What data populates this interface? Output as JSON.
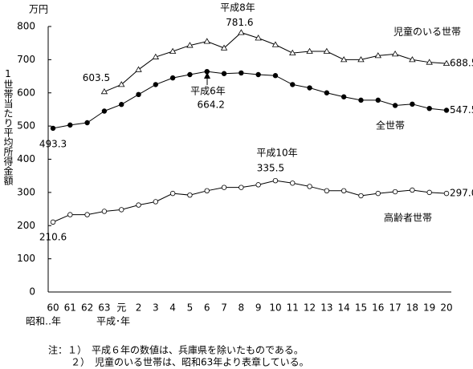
{
  "chart_data": {
    "type": "line",
    "unit_label": "万円",
    "y_label": "1世帯当たり平均所得金額",
    "x_sublabels": [
      "昭和‥年",
      "平成･年"
    ],
    "categories": [
      "60",
      "61",
      "62",
      "63",
      "元",
      "2",
      "3",
      "4",
      "5",
      "6",
      "7",
      "8",
      "9",
      "10",
      "11",
      "12",
      "13",
      "14",
      "15",
      "16",
      "17",
      "18",
      "19",
      "20"
    ],
    "series": [
      {
        "name": "全世帯",
        "color": "#000000",
        "marker": "filled-circle",
        "values": [
          493.3,
          503,
          510,
          545,
          565,
          595,
          625,
          645,
          655,
          664.2,
          658,
          660,
          655,
          652,
          625,
          615,
          600,
          588,
          578,
          578,
          562,
          566,
          553,
          547.5
        ],
        "value_labels": [
          "493.3",
          null,
          null,
          null,
          null,
          null,
          null,
          null,
          null,
          "664.2",
          null,
          null,
          null,
          null,
          null,
          null,
          null,
          null,
          null,
          null,
          null,
          null,
          null,
          "547.5"
        ]
      },
      {
        "name": "児童のいる世帯",
        "color": "#000000",
        "marker": "open-triangle",
        "values": [
          null,
          null,
          null,
          603.5,
          625,
          670,
          708,
          725,
          743,
          755,
          735,
          781.6,
          765,
          745,
          720,
          725,
          725,
          700,
          700,
          712,
          717,
          700,
          692,
          688.5
        ],
        "value_labels": [
          null,
          null,
          null,
          "603.5",
          null,
          null,
          null,
          null,
          null,
          null,
          null,
          "781.6",
          null,
          null,
          null,
          null,
          null,
          null,
          null,
          null,
          null,
          null,
          null,
          "688.5"
        ]
      },
      {
        "name": "高齢者世帯",
        "color": "#000000",
        "marker": "open-circle",
        "values": [
          210.6,
          233,
          233,
          243,
          248,
          262,
          272,
          297,
          292,
          305,
          315,
          315,
          323,
          335.5,
          328,
          318,
          305,
          305,
          290,
          297,
          302,
          307,
          300,
          297
        ],
        "value_labels": [
          "210.6",
          null,
          null,
          null,
          null,
          null,
          null,
          null,
          null,
          null,
          null,
          null,
          null,
          "335.5",
          null,
          null,
          null,
          null,
          null,
          null,
          null,
          null,
          null,
          "297.0"
        ]
      }
    ],
    "annotations": [
      "平成8年",
      "平成6年",
      "平成10年"
    ],
    "ylim": [
      0,
      800
    ],
    "yticks": [
      0,
      100,
      200,
      300,
      400,
      500,
      600,
      700,
      800
    ],
    "grid": false,
    "notes": [
      "注：１）　平成６年の数値は、兵庫県を除いたものである。",
      "２）　児童のいる世帯は、昭和63年より表章している。"
    ]
  }
}
